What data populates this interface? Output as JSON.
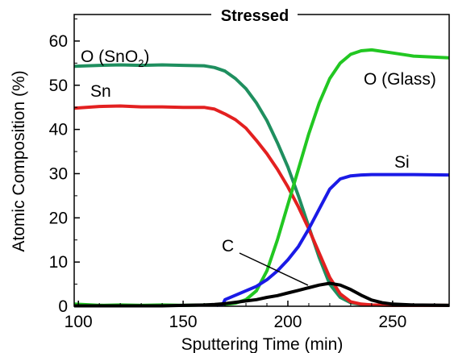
{
  "chart_data": {
    "type": "line",
    "title": "Stressed",
    "xlabel": "Sputtering Time (min)",
    "ylabel": "Atomic Composition (%)",
    "xlim": [
      98,
      277
    ],
    "ylim": [
      0,
      66
    ],
    "xticks": [
      100,
      150,
      200,
      250
    ],
    "yticks": [
      0,
      10,
      20,
      30,
      40,
      50,
      60
    ],
    "grid": false,
    "legend": "inline labels",
    "series": [
      {
        "name": "O (SnO2)",
        "label_main": "O (SnO",
        "label_sub": "2",
        "label_tail": ")",
        "color": "#1f8f5f",
        "x": [
          98,
          110,
          120,
          130,
          140,
          150,
          160,
          165,
          170,
          175,
          180,
          185,
          190,
          195,
          200,
          205,
          210,
          215,
          220,
          225,
          230,
          235,
          240,
          250,
          260,
          277
        ],
        "y": [
          54.3,
          54.5,
          54.6,
          54.5,
          54.6,
          54.5,
          54.4,
          54.0,
          53.2,
          51.5,
          49.2,
          46.0,
          42.0,
          37.0,
          31.5,
          25.0,
          18.0,
          11.0,
          5.0,
          2.0,
          0.8,
          0.4,
          0.3,
          0.2,
          0.2,
          0.2
        ]
      },
      {
        "name": "Sn",
        "label_main": "Sn",
        "color": "#e32020",
        "x": [
          98,
          110,
          120,
          130,
          140,
          150,
          160,
          165,
          170,
          175,
          180,
          185,
          190,
          195,
          200,
          205,
          210,
          215,
          220,
          225,
          230,
          235,
          240,
          250,
          260,
          277
        ],
        "y": [
          44.8,
          45.2,
          45.3,
          45.1,
          45.1,
          45.0,
          45.0,
          44.6,
          43.5,
          42.2,
          40.3,
          37.5,
          34.5,
          31.0,
          27.0,
          22.5,
          17.5,
          12.0,
          6.5,
          2.8,
          1.0,
          0.5,
          0.3,
          0.2,
          0.2,
          0.2
        ]
      },
      {
        "name": "O (Glass)",
        "label_main": "O (Glass)",
        "color": "#22c722",
        "x": [
          98,
          110,
          120,
          130,
          140,
          150,
          160,
          165,
          170,
          175,
          180,
          185,
          190,
          195,
          200,
          205,
          210,
          215,
          220,
          225,
          230,
          235,
          240,
          250,
          260,
          277
        ],
        "y": [
          0.5,
          0.2,
          0.3,
          0.2,
          0.3,
          0.2,
          0.3,
          0.3,
          0.4,
          0.7,
          1.5,
          3.5,
          8.0,
          15.0,
          23.0,
          31.0,
          39.0,
          46.0,
          51.5,
          55.0,
          57.0,
          57.8,
          58.0,
          57.3,
          56.6,
          56.2
        ]
      },
      {
        "name": "Si",
        "label_main": "Si",
        "color": "#1a1ae6",
        "x": [
          166,
          169,
          170,
          175,
          180,
          185,
          190,
          195,
          200,
          205,
          210,
          215,
          220,
          225,
          230,
          235,
          240,
          250,
          260,
          277
        ],
        "y": [
          0.2,
          0.5,
          1.5,
          2.5,
          3.5,
          4.5,
          6.0,
          8.0,
          10.5,
          13.5,
          17.5,
          22.0,
          26.5,
          28.8,
          29.5,
          29.7,
          29.8,
          29.8,
          29.8,
          29.7
        ]
      },
      {
        "name": "C",
        "label_main": "C",
        "color": "#000000",
        "x": [
          98,
          110,
          120,
          130,
          140,
          150,
          160,
          165,
          170,
          175,
          180,
          185,
          190,
          195,
          200,
          205,
          210,
          215,
          220,
          225,
          230,
          235,
          240,
          245,
          250,
          260,
          277
        ],
        "y": [
          0.1,
          0.1,
          0.1,
          0.1,
          0.1,
          0.2,
          0.3,
          0.4,
          0.6,
          0.9,
          1.2,
          1.5,
          2.0,
          2.4,
          3.0,
          3.6,
          4.2,
          4.8,
          5.2,
          4.8,
          3.8,
          2.5,
          1.4,
          0.8,
          0.5,
          0.3,
          0.2
        ]
      }
    ]
  }
}
